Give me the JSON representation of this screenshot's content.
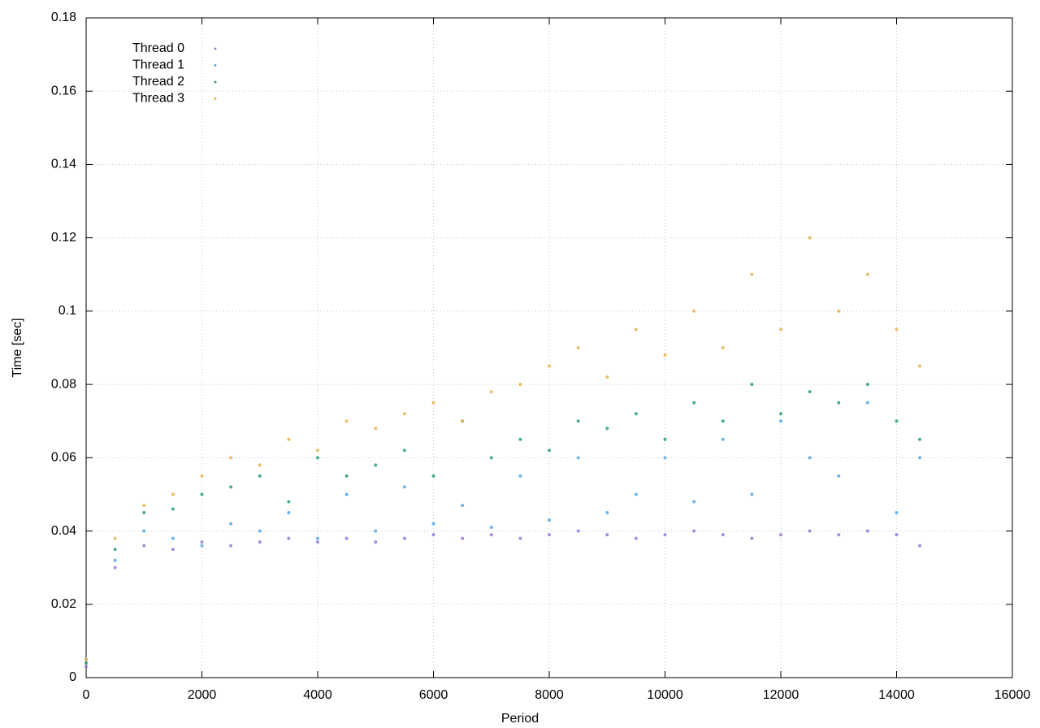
{
  "chart_data": {
    "type": "scatter",
    "x_label": "Period",
    "y_label": "Time [sec]",
    "xlim": [
      0,
      16000
    ],
    "ylim": [
      0,
      0.18
    ],
    "xticks": [
      0,
      2000,
      4000,
      6000,
      8000,
      10000,
      12000,
      14000,
      16000
    ],
    "yticks": [
      0,
      0.02,
      0.04,
      0.06,
      0.08,
      0.1,
      0.12,
      0.14,
      0.16,
      0.18
    ],
    "grid": true,
    "legend": "top-left",
    "x": [
      0,
      500,
      1000,
      1500,
      2000,
      2500,
      3000,
      3500,
      4000,
      4500,
      5000,
      5500,
      6000,
      6500,
      7000,
      7500,
      8000,
      8500,
      9000,
      9500,
      10000,
      10500,
      11000,
      11500,
      12000,
      12500,
      13000,
      13500,
      14000,
      14400
    ],
    "series": [
      {
        "name": "Thread 0",
        "color": "#9a78d8",
        "values": [
          0.003,
          0.03,
          0.036,
          0.035,
          0.037,
          0.036,
          0.037,
          0.038,
          0.037,
          0.038,
          0.037,
          0.038,
          0.039,
          0.038,
          0.039,
          0.038,
          0.039,
          0.04,
          0.039,
          0.038,
          0.039,
          0.04,
          0.039,
          0.038,
          0.039,
          0.04,
          0.039,
          0.04,
          0.039,
          0.036
        ]
      },
      {
        "name": "Thread 1",
        "color": "#56a8e8",
        "values": [
          0.005,
          0.032,
          0.04,
          0.038,
          0.036,
          0.042,
          0.04,
          0.045,
          0.038,
          0.05,
          0.04,
          0.052,
          0.042,
          0.047,
          0.041,
          0.055,
          0.043,
          0.06,
          0.045,
          0.05,
          0.06,
          0.048,
          0.065,
          0.05,
          0.07,
          0.06,
          0.055,
          0.075,
          0.045,
          0.06
        ]
      },
      {
        "name": "Thread 2",
        "color": "#2aa07a",
        "values": [
          0.004,
          0.035,
          0.045,
          0.046,
          0.05,
          0.052,
          0.055,
          0.048,
          0.06,
          0.055,
          0.058,
          0.062,
          0.055,
          0.07,
          0.06,
          0.065,
          0.062,
          0.07,
          0.068,
          0.072,
          0.065,
          0.075,
          0.07,
          0.08,
          0.072,
          0.078,
          0.075,
          0.08,
          0.07,
          0.065
        ]
      },
      {
        "name": "Thread 3",
        "color": "#e8b450",
        "values": [
          0.005,
          0.038,
          0.047,
          0.05,
          0.055,
          0.06,
          0.058,
          0.065,
          0.062,
          0.07,
          0.068,
          0.072,
          0.075,
          0.07,
          0.078,
          0.08,
          0.085,
          0.09,
          0.082,
          0.095,
          0.088,
          0.1,
          0.09,
          0.11,
          0.095,
          0.12,
          0.1,
          0.11,
          0.095,
          0.085
        ]
      }
    ]
  }
}
